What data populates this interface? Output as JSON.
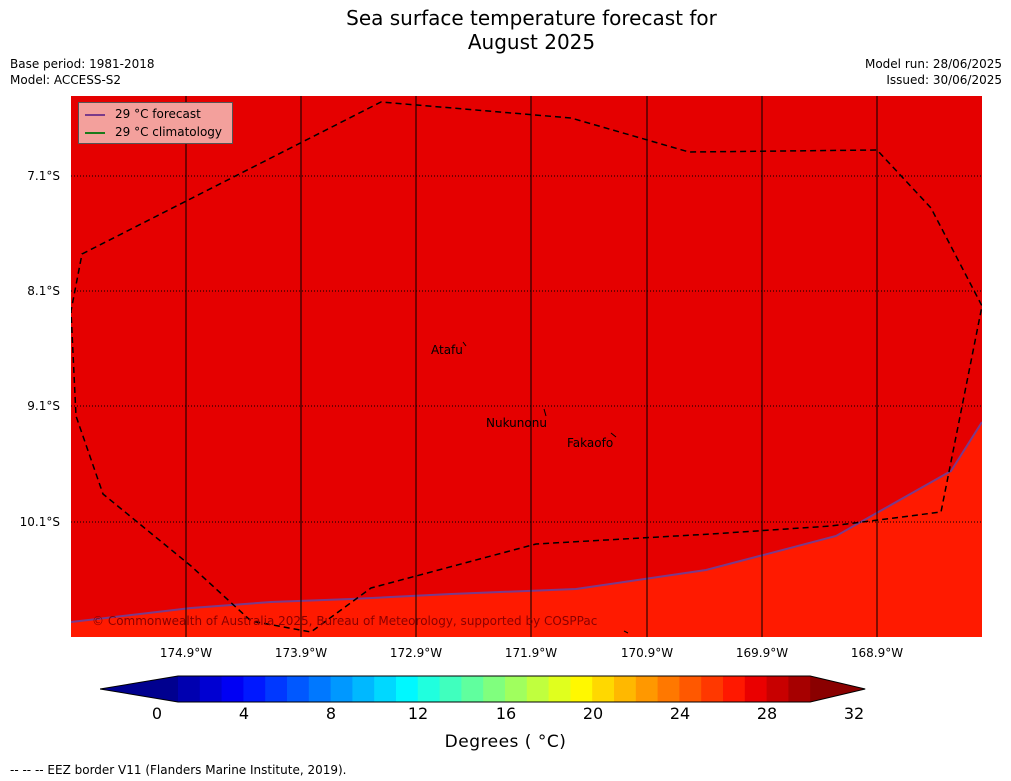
{
  "title_line1": "Sea surface temperature forecast for",
  "title_line2": "August 2025",
  "base_period": "Base period: 1981-2018",
  "model": "Model: ACCESS-S2",
  "model_run": "Model run: 28/06/2025",
  "issued": "Issued: 30/06/2025",
  "legend": {
    "forecast": "29 °C  forecast",
    "climatology": "29 °C  climatology",
    "forecast_color": "#7a3a8a",
    "climatology_color": "#1a7a1a"
  },
  "lat_labels": [
    "7.1°S",
    "8.1°S",
    "9.1°S",
    "10.1°S"
  ],
  "lon_labels": [
    "174.9°W",
    "173.9°W",
    "172.9°W",
    "171.9°W",
    "170.9°W",
    "169.9°W",
    "168.9°W"
  ],
  "places": {
    "atafu": "Atafu",
    "nukunonu": "Nukunonu",
    "fakaofo": "Fakaofo"
  },
  "copyright": "© Commonwealth of Australia 2025, Bureau of Meteorology, supported by COSPPac",
  "colors": {
    "warm_region": "#e50000",
    "cool_region": "#ff1a00"
  },
  "colorbar": {
    "ticks": [
      "0",
      "4",
      "8",
      "12",
      "16",
      "20",
      "24",
      "28",
      "32"
    ],
    "min": 0,
    "max": 32,
    "step": 1,
    "label": "Degrees ( °C)",
    "colors": [
      "#00008f",
      "#0000b0",
      "#0000d2",
      "#0000f4",
      "#0018ff",
      "#0038ff",
      "#0058ff",
      "#0078ff",
      "#0098ff",
      "#00b8ff",
      "#00d8ff",
      "#00f8ff",
      "#20ffde",
      "#40ffbe",
      "#60ff9e",
      "#80ff7e",
      "#a0ff5e",
      "#c0ff3e",
      "#e0ff1e",
      "#fff800",
      "#ffd800",
      "#ffb800",
      "#ff9800",
      "#ff7800",
      "#ff5800",
      "#ff3800",
      "#ff1800",
      "#ea0000",
      "#c80000",
      "#a60000",
      "#8a0000"
    ]
  },
  "footnote": "--  --  -- EEZ border V11 (Flanders Marine Institute, 2019)."
}
